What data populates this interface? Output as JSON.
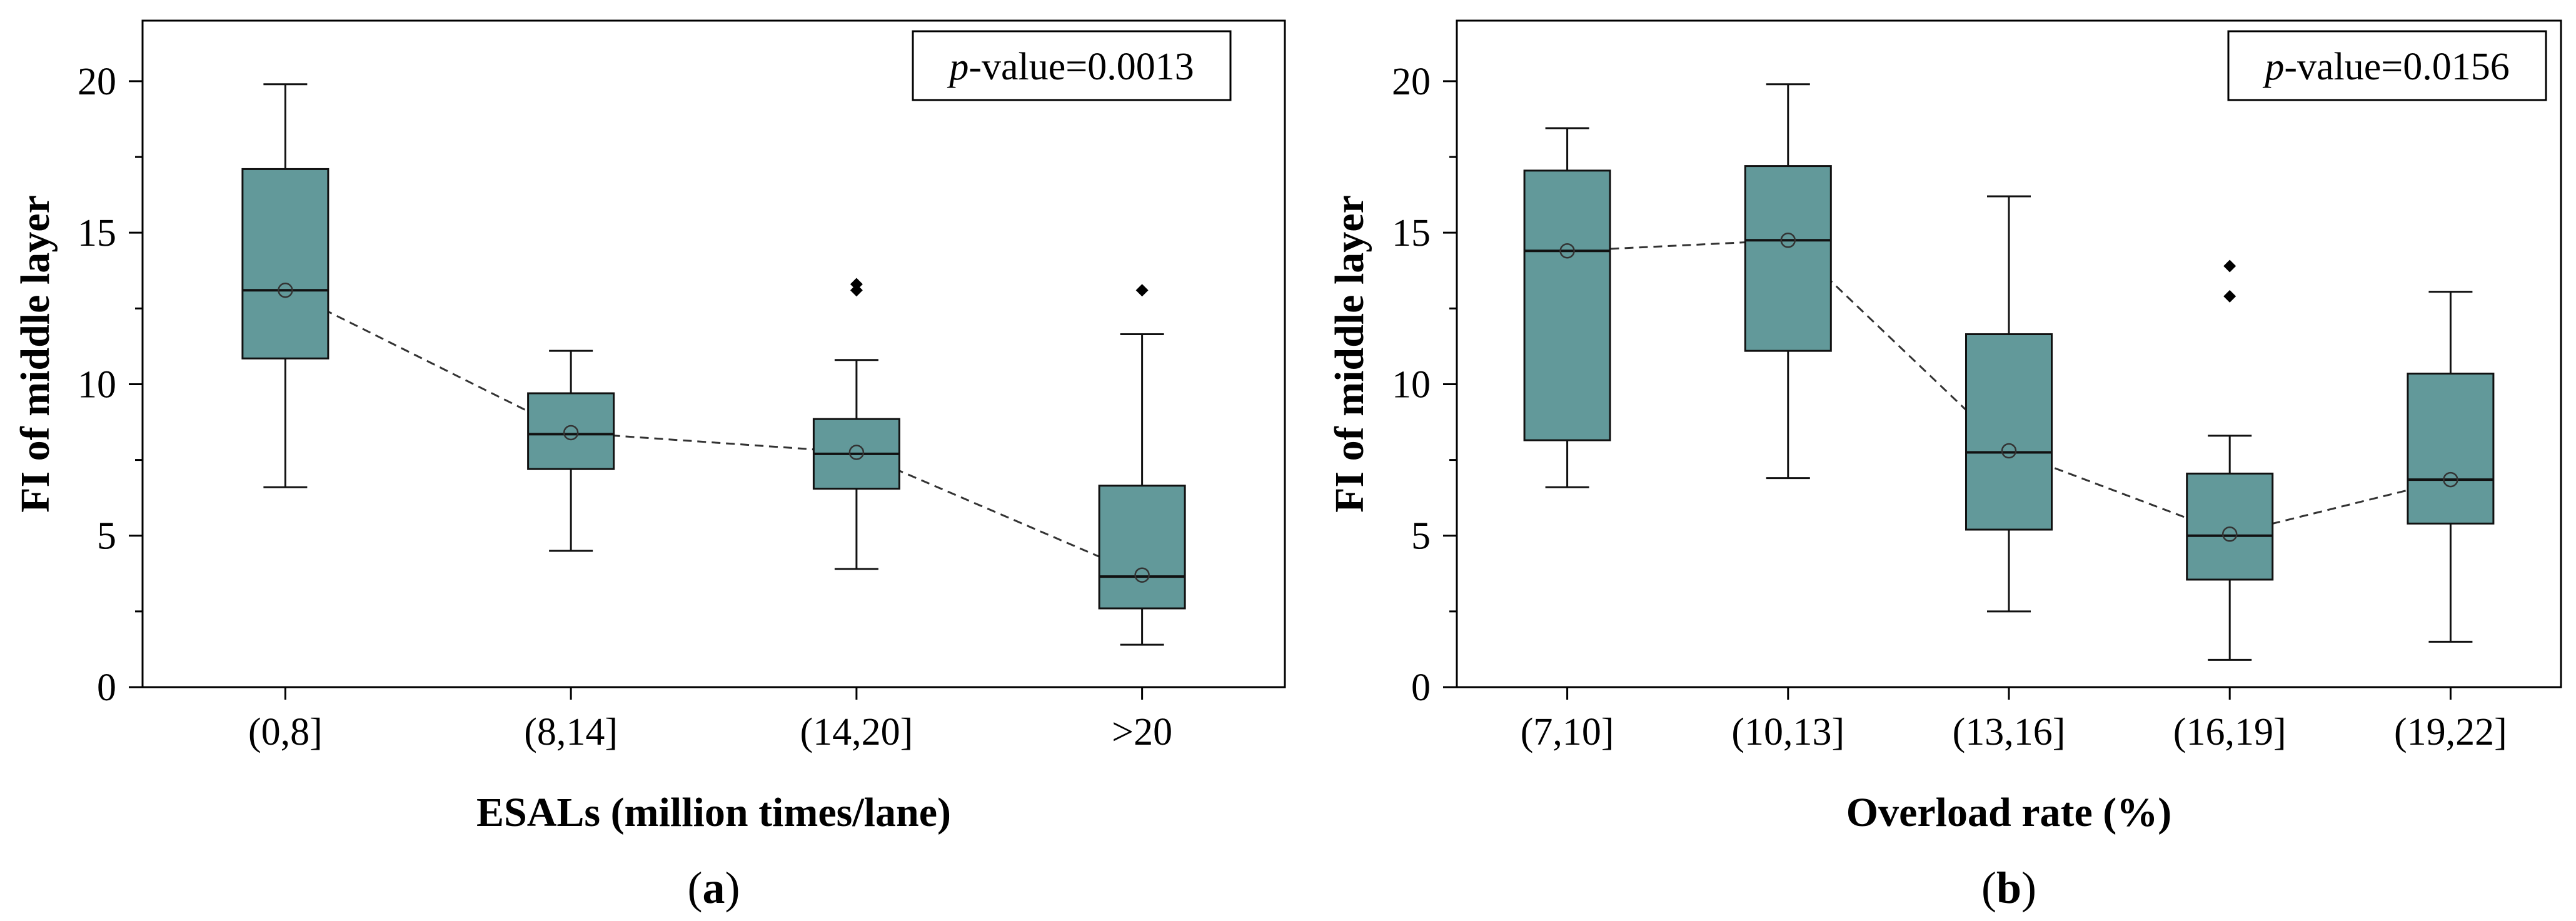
{
  "chart_data": [
    {
      "type": "box",
      "panel_label": "a",
      "ylabel": "FI of middle layer",
      "xlabel": "ESALs (million times/lane)",
      "annotation_prefix": "p",
      "annotation_value": "-value=0.0013",
      "ylim": [
        0,
        22
      ],
      "yticks": [
        0,
        5,
        10,
        15,
        20
      ],
      "categories": [
        "(0,8]",
        "(8,14]",
        "(14,20]",
        ">20"
      ],
      "boxes": [
        {
          "whisker_low": 6.6,
          "q1": 10.85,
          "median": 13.1,
          "q3": 17.1,
          "whisker_high": 19.9,
          "mean": 13.1,
          "outliers": []
        },
        {
          "whisker_low": 4.5,
          "q1": 7.2,
          "median": 8.35,
          "q3": 9.7,
          "whisker_high": 11.1,
          "mean": 8.4,
          "outliers": []
        },
        {
          "whisker_low": 3.9,
          "q1": 6.55,
          "median": 7.7,
          "q3": 8.85,
          "whisker_high": 10.8,
          "mean": 7.75,
          "outliers": [
            13.1,
            13.3
          ]
        },
        {
          "whisker_low": 1.4,
          "q1": 2.6,
          "median": 3.65,
          "q3": 6.65,
          "whisker_high": 11.65,
          "mean": 3.7,
          "outliers": [
            13.1
          ]
        }
      ],
      "color": "#62999a",
      "edge_color": "#111111"
    },
    {
      "type": "box",
      "panel_label": "b",
      "ylabel": "FI of middle layer",
      "xlabel": "Overload rate (%)",
      "annotation_prefix": "p",
      "annotation_value": "-value=0.0156",
      "ylim": [
        0,
        22
      ],
      "yticks": [
        0,
        5,
        10,
        15,
        20
      ],
      "categories": [
        "(7,10]",
        "(10,13]",
        "(13,16]",
        "(16,19]",
        "(19,22]"
      ],
      "boxes": [
        {
          "whisker_low": 6.6,
          "q1": 8.15,
          "median": 14.4,
          "q3": 17.05,
          "whisker_high": 18.45,
          "mean": 14.4,
          "outliers": []
        },
        {
          "whisker_low": 6.9,
          "q1": 11.1,
          "median": 14.75,
          "q3": 17.2,
          "whisker_high": 19.9,
          "mean": 14.75,
          "outliers": []
        },
        {
          "whisker_low": 2.5,
          "q1": 5.2,
          "median": 7.75,
          "q3": 11.65,
          "whisker_high": 16.2,
          "mean": 7.8,
          "outliers": []
        },
        {
          "whisker_low": 0.9,
          "q1": 3.55,
          "median": 5.0,
          "q3": 7.05,
          "whisker_high": 8.3,
          "mean": 5.05,
          "outliers": [
            12.9,
            13.9
          ]
        },
        {
          "whisker_low": 1.5,
          "q1": 5.4,
          "median": 6.85,
          "q3": 10.35,
          "whisker_high": 13.05,
          "mean": 6.85,
          "outliers": []
        }
      ],
      "color": "#62999a",
      "edge_color": "#111111"
    }
  ]
}
